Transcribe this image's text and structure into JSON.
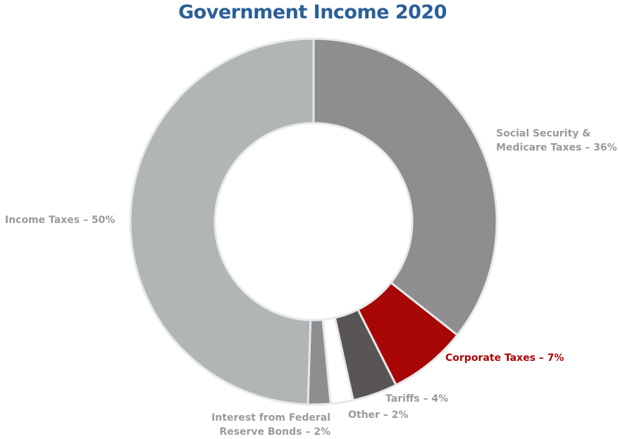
{
  "chart_data": {
    "type": "pie",
    "title": "Government Income 2020",
    "categories": [
      "Social Security & Medicare Taxes",
      "Corporate Taxes",
      "Tariffs",
      "Other",
      "Interest from Federal Reserve Bonds",
      "Income Taxes"
    ],
    "values": [
      36,
      7,
      4,
      2,
      2,
      50
    ],
    "labels": [
      [
        "Social Security &",
        "Medicare Taxes – 36%"
      ],
      [
        "Corporate Taxes – 7%"
      ],
      [
        "Tariffs – 4%"
      ],
      [
        "Other – 2%"
      ],
      [
        "Interest from Federal",
        "Reserve Bonds – 2%"
      ],
      [
        "Income Taxes – 50%"
      ]
    ],
    "colors": [
      "#8e8e91",
      "#a80707",
      "#5a5555",
      "#ffffff",
      "#8e8e91",
      "#b0b5b6"
    ],
    "label_colors": [
      "#9a9a9a",
      "#a80707",
      "#9a9a9a",
      "#9a9a9a",
      "#9a9a9a",
      "#9a9a9a"
    ],
    "style": "donut"
  }
}
